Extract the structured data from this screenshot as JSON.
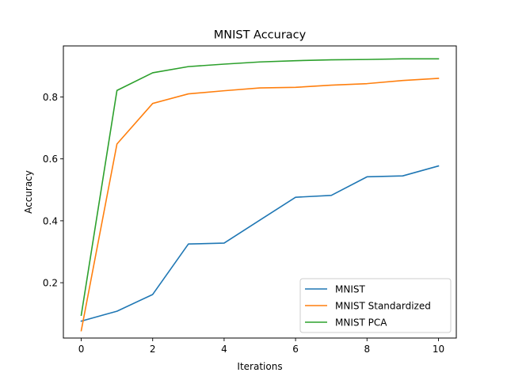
{
  "chart_data": {
    "type": "line",
    "title": "MNIST Accuracy",
    "xlabel": "Iterations",
    "ylabel": "Accuracy",
    "x": [
      0,
      1,
      2,
      3,
      4,
      5,
      6,
      7,
      8,
      9,
      10
    ],
    "xlim": [
      -0.5,
      10.5
    ],
    "ylim": [
      0.0213,
      0.9648
    ],
    "xticks": [
      0,
      2,
      4,
      6,
      8,
      10
    ],
    "yticks": [
      0.2,
      0.4,
      0.6,
      0.8
    ],
    "xtick_labels": [
      "0",
      "2",
      "4",
      "6",
      "8",
      "10"
    ],
    "ytick_labels": [
      "0.2",
      "0.4",
      "0.6",
      "0.8"
    ],
    "grid": false,
    "legend_position": "lower-right",
    "series": [
      {
        "name": "MNIST",
        "color": "#1f77b4",
        "values": [
          0.076,
          0.108,
          0.162,
          0.325,
          0.328,
          0.402,
          0.476,
          0.482,
          0.542,
          0.545,
          0.577
        ]
      },
      {
        "name": "MNIST Standardized",
        "color": "#ff7f0e",
        "values": [
          0.045,
          0.648,
          0.779,
          0.81,
          0.82,
          0.829,
          0.831,
          0.838,
          0.843,
          0.853,
          0.86
        ]
      },
      {
        "name": "MNIST PCA",
        "color": "#2ca02c",
        "values": [
          0.095,
          0.821,
          0.878,
          0.898,
          0.906,
          0.913,
          0.917,
          0.92,
          0.921,
          0.923,
          0.923
        ]
      }
    ]
  }
}
